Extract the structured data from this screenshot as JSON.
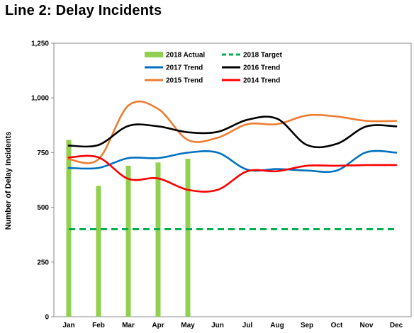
{
  "title": "Line 2: Delay Incidents",
  "chart_data": {
    "type": "bar",
    "title": "Line 2: Delay Incidents",
    "xlabel": "",
    "ylabel": "Number of Delay Incidents",
    "ylim": [
      0,
      1250
    ],
    "yticks": [
      0,
      250,
      500,
      750,
      1000,
      1250
    ],
    "ytick_labels": [
      "0",
      "250",
      "500",
      "750",
      "1,000",
      "1,250"
    ],
    "categories": [
      "Jan",
      "Feb",
      "Mar",
      "Apr",
      "May",
      "Jun",
      "Jul",
      "Aug",
      "Sep",
      "Oct",
      "Nov",
      "Dec"
    ],
    "grid": false,
    "legend_placement": "top-center",
    "series": [
      {
        "name": "2018 Actual",
        "kind": "bar",
        "color": "#92d050",
        "values": [
          808,
          598,
          690,
          705,
          722,
          null,
          null,
          null,
          null,
          null,
          null,
          null
        ]
      },
      {
        "name": "2018 Target",
        "kind": "dashed-line",
        "color": "#00b050",
        "values": [
          400,
          400,
          400,
          400,
          400,
          400,
          400,
          400,
          400,
          400,
          400,
          400
        ]
      },
      {
        "name": "2017 Trend",
        "kind": "line",
        "color": "#0070c0",
        "values": [
          680,
          680,
          725,
          725,
          750,
          750,
          672,
          675,
          668,
          668,
          752,
          750
        ]
      },
      {
        "name": "2016 Trend",
        "kind": "line",
        "color": "#000000",
        "values": [
          782,
          785,
          872,
          870,
          843,
          845,
          900,
          905,
          785,
          790,
          870,
          870
        ]
      },
      {
        "name": "2015 Trend",
        "kind": "line",
        "color": "#ed7d31",
        "values": [
          720,
          720,
          965,
          950,
          808,
          818,
          880,
          880,
          920,
          915,
          895,
          895
        ]
      },
      {
        "name": "2014 Trend",
        "kind": "line",
        "color": "#ff0000",
        "values": [
          728,
          728,
          630,
          632,
          580,
          580,
          665,
          665,
          690,
          690,
          693,
          693
        ]
      }
    ]
  }
}
